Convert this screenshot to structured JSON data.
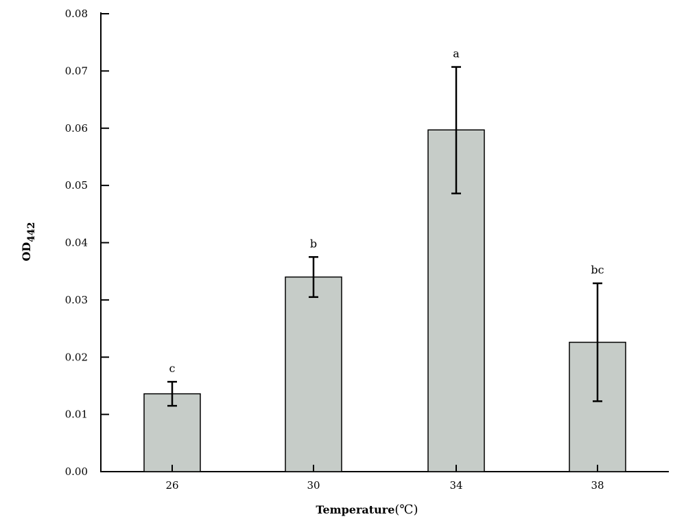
{
  "chart_data": {
    "type": "bar",
    "title": "",
    "categories": [
      "26",
      "30",
      "34",
      "38"
    ],
    "values": [
      0.0136,
      0.034,
      0.0597,
      0.0226
    ],
    "error_low": [
      0.0115,
      0.0305,
      0.0486,
      0.0123
    ],
    "error_high": [
      0.0157,
      0.0375,
      0.0707,
      0.0329
    ],
    "significance_labels": [
      "c",
      "b",
      "a",
      "bc"
    ],
    "xlabel": "Temperature",
    "xlabel_unit": "(℃)",
    "ylabel_main": "OD",
    "ylabel_sub": "442",
    "ylim": [
      0,
      0.08
    ],
    "yticks": [
      "0.00",
      "0.01",
      "0.02",
      "0.03",
      "0.04",
      "0.05",
      "0.06",
      "0.07",
      "0.08"
    ],
    "grid": false,
    "legend": "none",
    "bar_color": "#c6ccc8",
    "bar_edge_color": "#000000"
  }
}
